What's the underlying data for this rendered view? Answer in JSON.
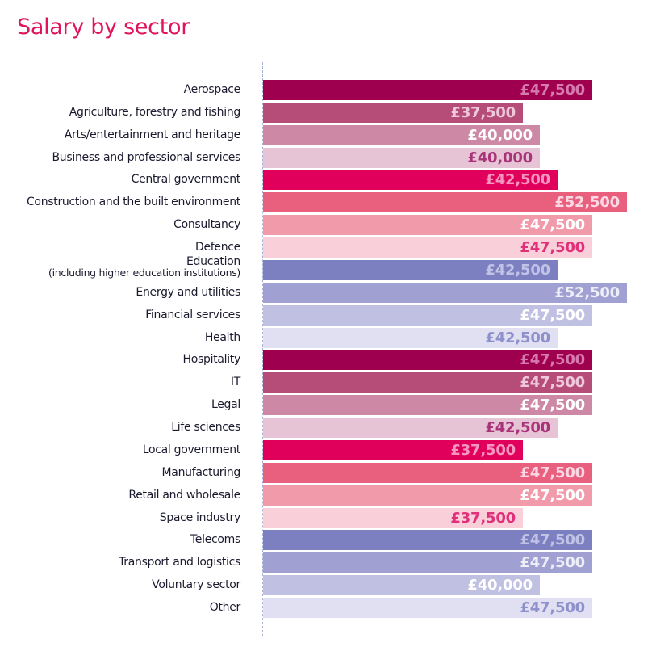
{
  "chart_data": {
    "type": "bar",
    "orientation": "horizontal",
    "title": "Salary by sector",
    "xlabel": "",
    "ylabel": "",
    "xlim": [
      0,
      52500
    ],
    "grid": false,
    "legend": "none",
    "currency": "£",
    "categories": [
      {
        "label": "Aerospace",
        "sub": ""
      },
      {
        "label": "Agriculture, forestry and fishing",
        "sub": ""
      },
      {
        "label": "Arts/entertainment and heritage",
        "sub": ""
      },
      {
        "label": "Business and professional services",
        "sub": ""
      },
      {
        "label": "Central government",
        "sub": ""
      },
      {
        "label": "Construction and the built environment",
        "sub": ""
      },
      {
        "label": "Consultancy",
        "sub": ""
      },
      {
        "label": "Defence",
        "sub": ""
      },
      {
        "label": "Education",
        "sub": "(including higher education institutions)"
      },
      {
        "label": "Energy and utilities",
        "sub": ""
      },
      {
        "label": "Financial services",
        "sub": ""
      },
      {
        "label": "Health",
        "sub": ""
      },
      {
        "label": "Hospitality",
        "sub": ""
      },
      {
        "label": "IT",
        "sub": ""
      },
      {
        "label": "Legal",
        "sub": ""
      },
      {
        "label": "Life sciences",
        "sub": ""
      },
      {
        "label": "Local government",
        "sub": ""
      },
      {
        "label": "Manufacturing",
        "sub": ""
      },
      {
        "label": "Retail and wholesale",
        "sub": ""
      },
      {
        "label": "Space industry",
        "sub": ""
      },
      {
        "label": "Telecoms",
        "sub": ""
      },
      {
        "label": "Transport and logistics",
        "sub": ""
      },
      {
        "label": "Voluntary sector",
        "sub": ""
      },
      {
        "label": "Other",
        "sub": ""
      }
    ],
    "values": [
      47500,
      37500,
      40000,
      40000,
      42500,
      52500,
      47500,
      47500,
      42500,
      52500,
      47500,
      42500,
      47500,
      47500,
      47500,
      42500,
      37500,
      47500,
      47500,
      37500,
      47500,
      47500,
      40000,
      47500
    ],
    "value_labels": [
      "£47,500",
      "£37,500",
      "£40,000",
      "£40,000",
      "£42,500",
      "£52,500",
      "£47,500",
      "£47,500",
      "£42,500",
      "£52,500",
      "£47,500",
      "£42,500",
      "£47,500",
      "£47,500",
      "£47,500",
      "£42,500",
      "£37,500",
      "£47,500",
      "£47,500",
      "£37,500",
      "£47,500",
      "£47,500",
      "£40,000",
      "£47,500"
    ]
  },
  "colors": {
    "title": "#e0145c",
    "label_text": "#1a1a2e",
    "baseline": "#aab0d6",
    "bar_palette": [
      {
        "fill": "#9e004f",
        "text": "#d67ab0"
      },
      {
        "fill": "#b54d78",
        "text": "#f0c8dc"
      },
      {
        "fill": "#cc88a4",
        "text": "#ffffff"
      },
      {
        "fill": "#e6c4d6",
        "text": "#a83378"
      },
      {
        "fill": "#e0005c",
        "text": "#f596c0"
      },
      {
        "fill": "#e8607e",
        "text": "#fcd8e4"
      },
      {
        "fill": "#f09aaa",
        "text": "#ffffff"
      },
      {
        "fill": "#f9d0da",
        "text": "#e0307a"
      },
      {
        "fill": "#7c80c0",
        "text": "#c0c2e6"
      },
      {
        "fill": "#a0a0d2",
        "text": "#eceef8"
      },
      {
        "fill": "#c0c0e2",
        "text": "#ffffff"
      },
      {
        "fill": "#e0e0f2",
        "text": "#8e90cc"
      }
    ]
  }
}
